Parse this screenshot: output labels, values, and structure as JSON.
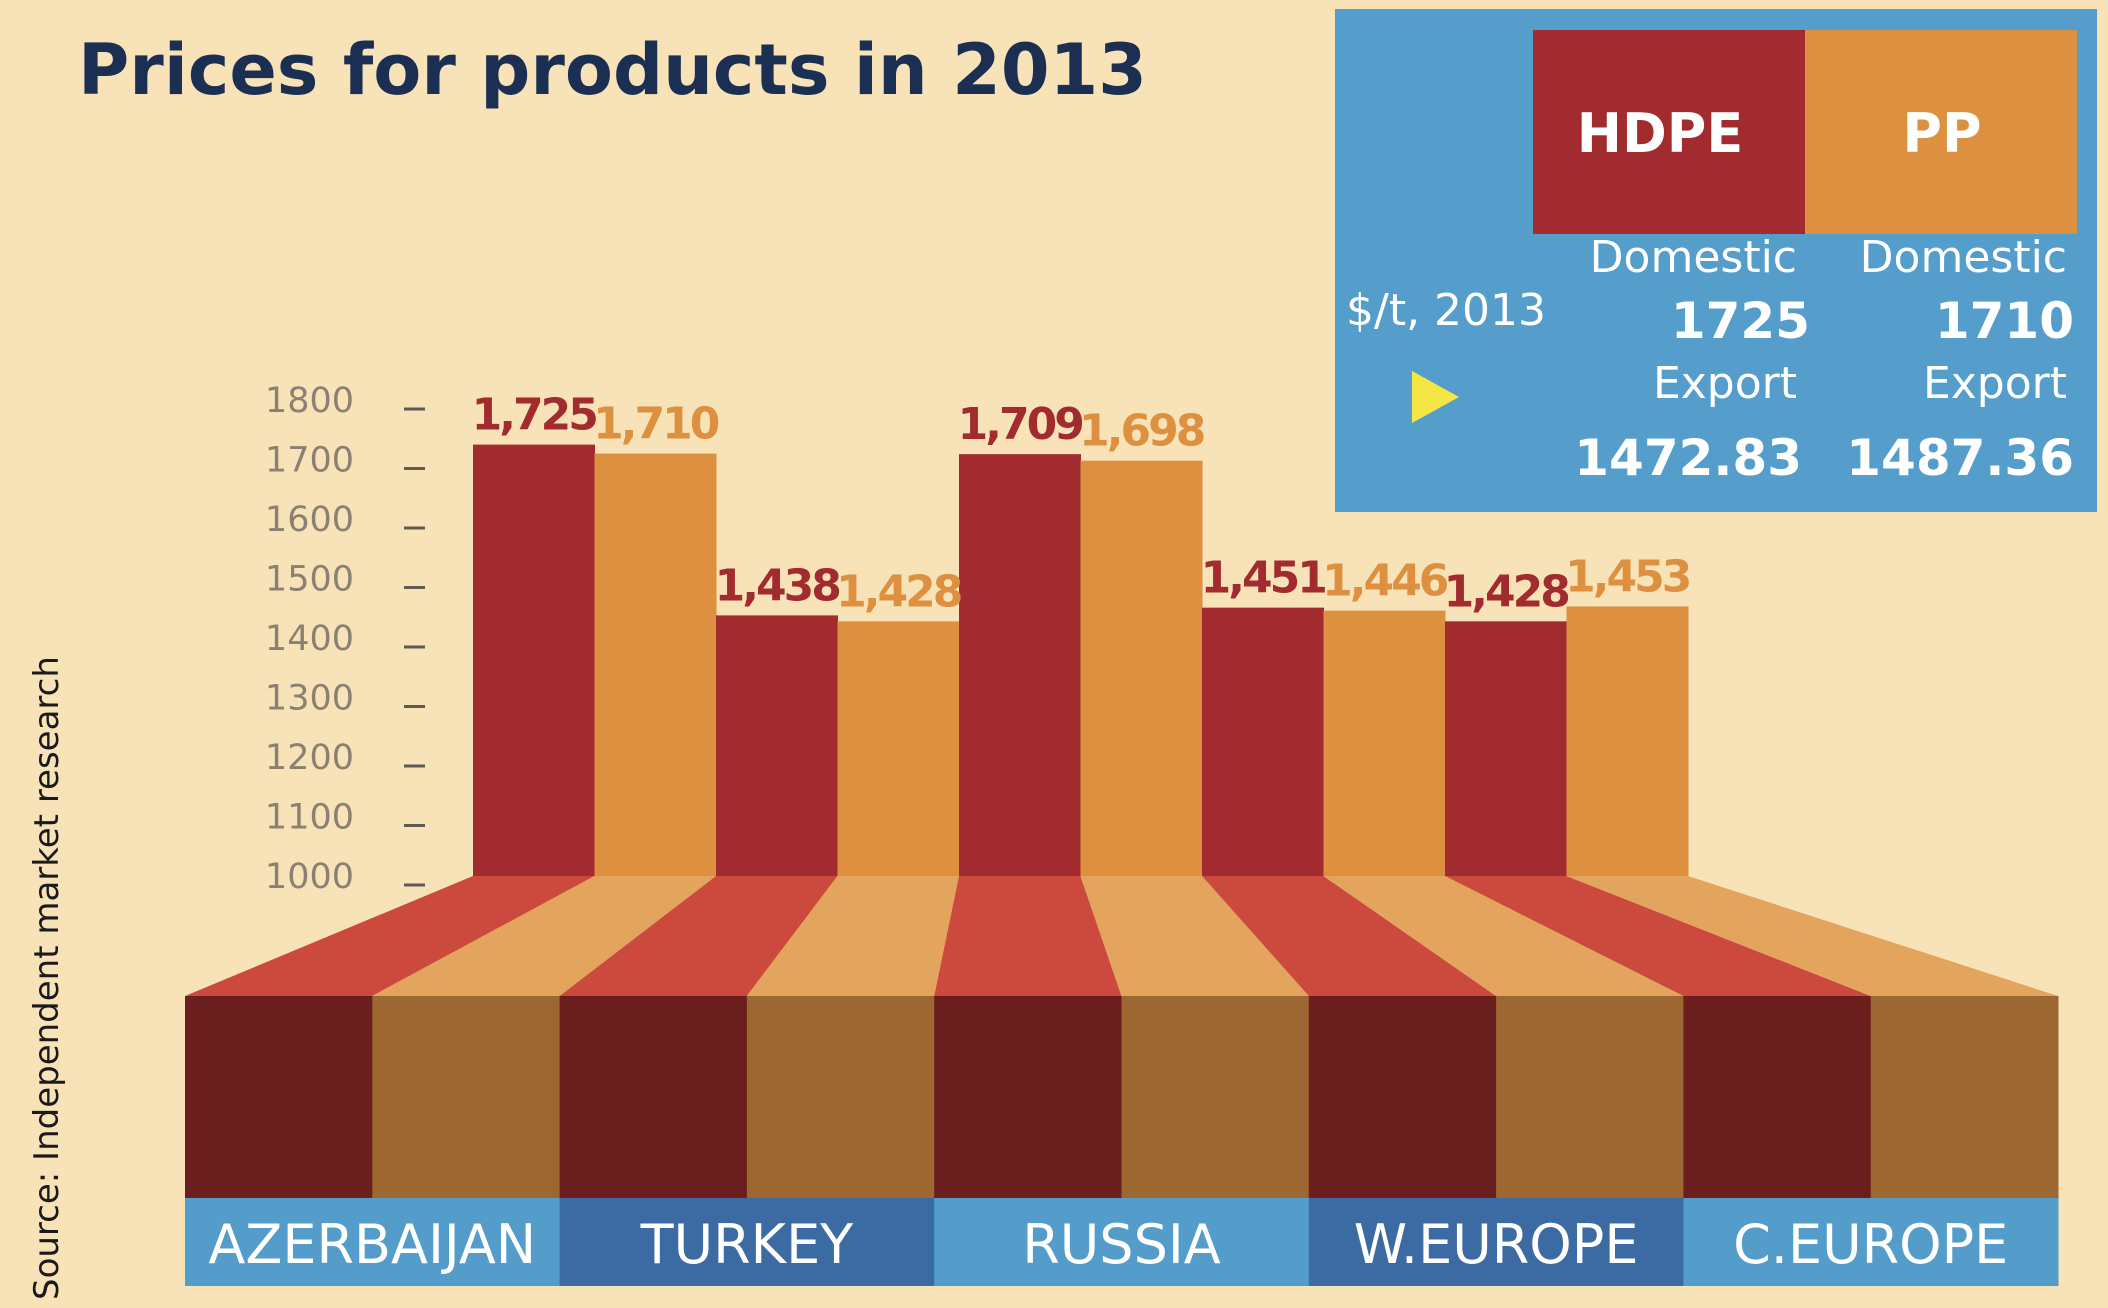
{
  "chart_data": {
    "type": "bar",
    "title": "Prices for products in 2013",
    "source": "Source: Independent market research",
    "categories": [
      "AZERBAIJAN",
      "TURKEY",
      "RUSSIA",
      "W.EUROPE",
      "C.EUROPE"
    ],
    "series": [
      {
        "name": "HDPE",
        "values": [
          1725,
          1438,
          1709,
          1451,
          1428
        ],
        "labels": [
          "1,725",
          "1,438",
          "1,709",
          "1,451",
          "1,428"
        ]
      },
      {
        "name": "PP",
        "values": [
          1710,
          1428,
          1698,
          1446,
          1453
        ],
        "labels": [
          "1,710",
          "1,428",
          "1,698",
          "1,446",
          "1,453"
        ]
      }
    ],
    "ylim": [
      1000,
      1800
    ],
    "yticks": [
      "1000",
      "1100",
      "1200",
      "1300",
      "1400",
      "1500",
      "1600",
      "1700",
      "1800"
    ],
    "legend": {
      "unit": "$/t, 2013",
      "entries": [
        {
          "name": "HDPE",
          "domestic_label": "Domestic",
          "domestic": "1725",
          "export_label": "Export",
          "export": "1472.83"
        },
        {
          "name": "PP",
          "domestic_label": "Domestic",
          "domestic": "1710",
          "export_label": "Export",
          "export": "1487.36"
        }
      ]
    }
  },
  "colors": {
    "background": "#f8e3b9",
    "hdpe": "#a12b2e",
    "pp": "#dd9040",
    "hdpe_floor": "#cc4a3d",
    "pp_floor": "#e3a45e",
    "hdpe_front": "#6b1e1e",
    "pp_front": "#9c6730",
    "label_light": "#549dca",
    "label_dark": "#3c6aa3",
    "legend_bg": "#559ecc",
    "title": "#1b2f53",
    "tick": "#8a8172",
    "arrow": "#f3e645"
  }
}
